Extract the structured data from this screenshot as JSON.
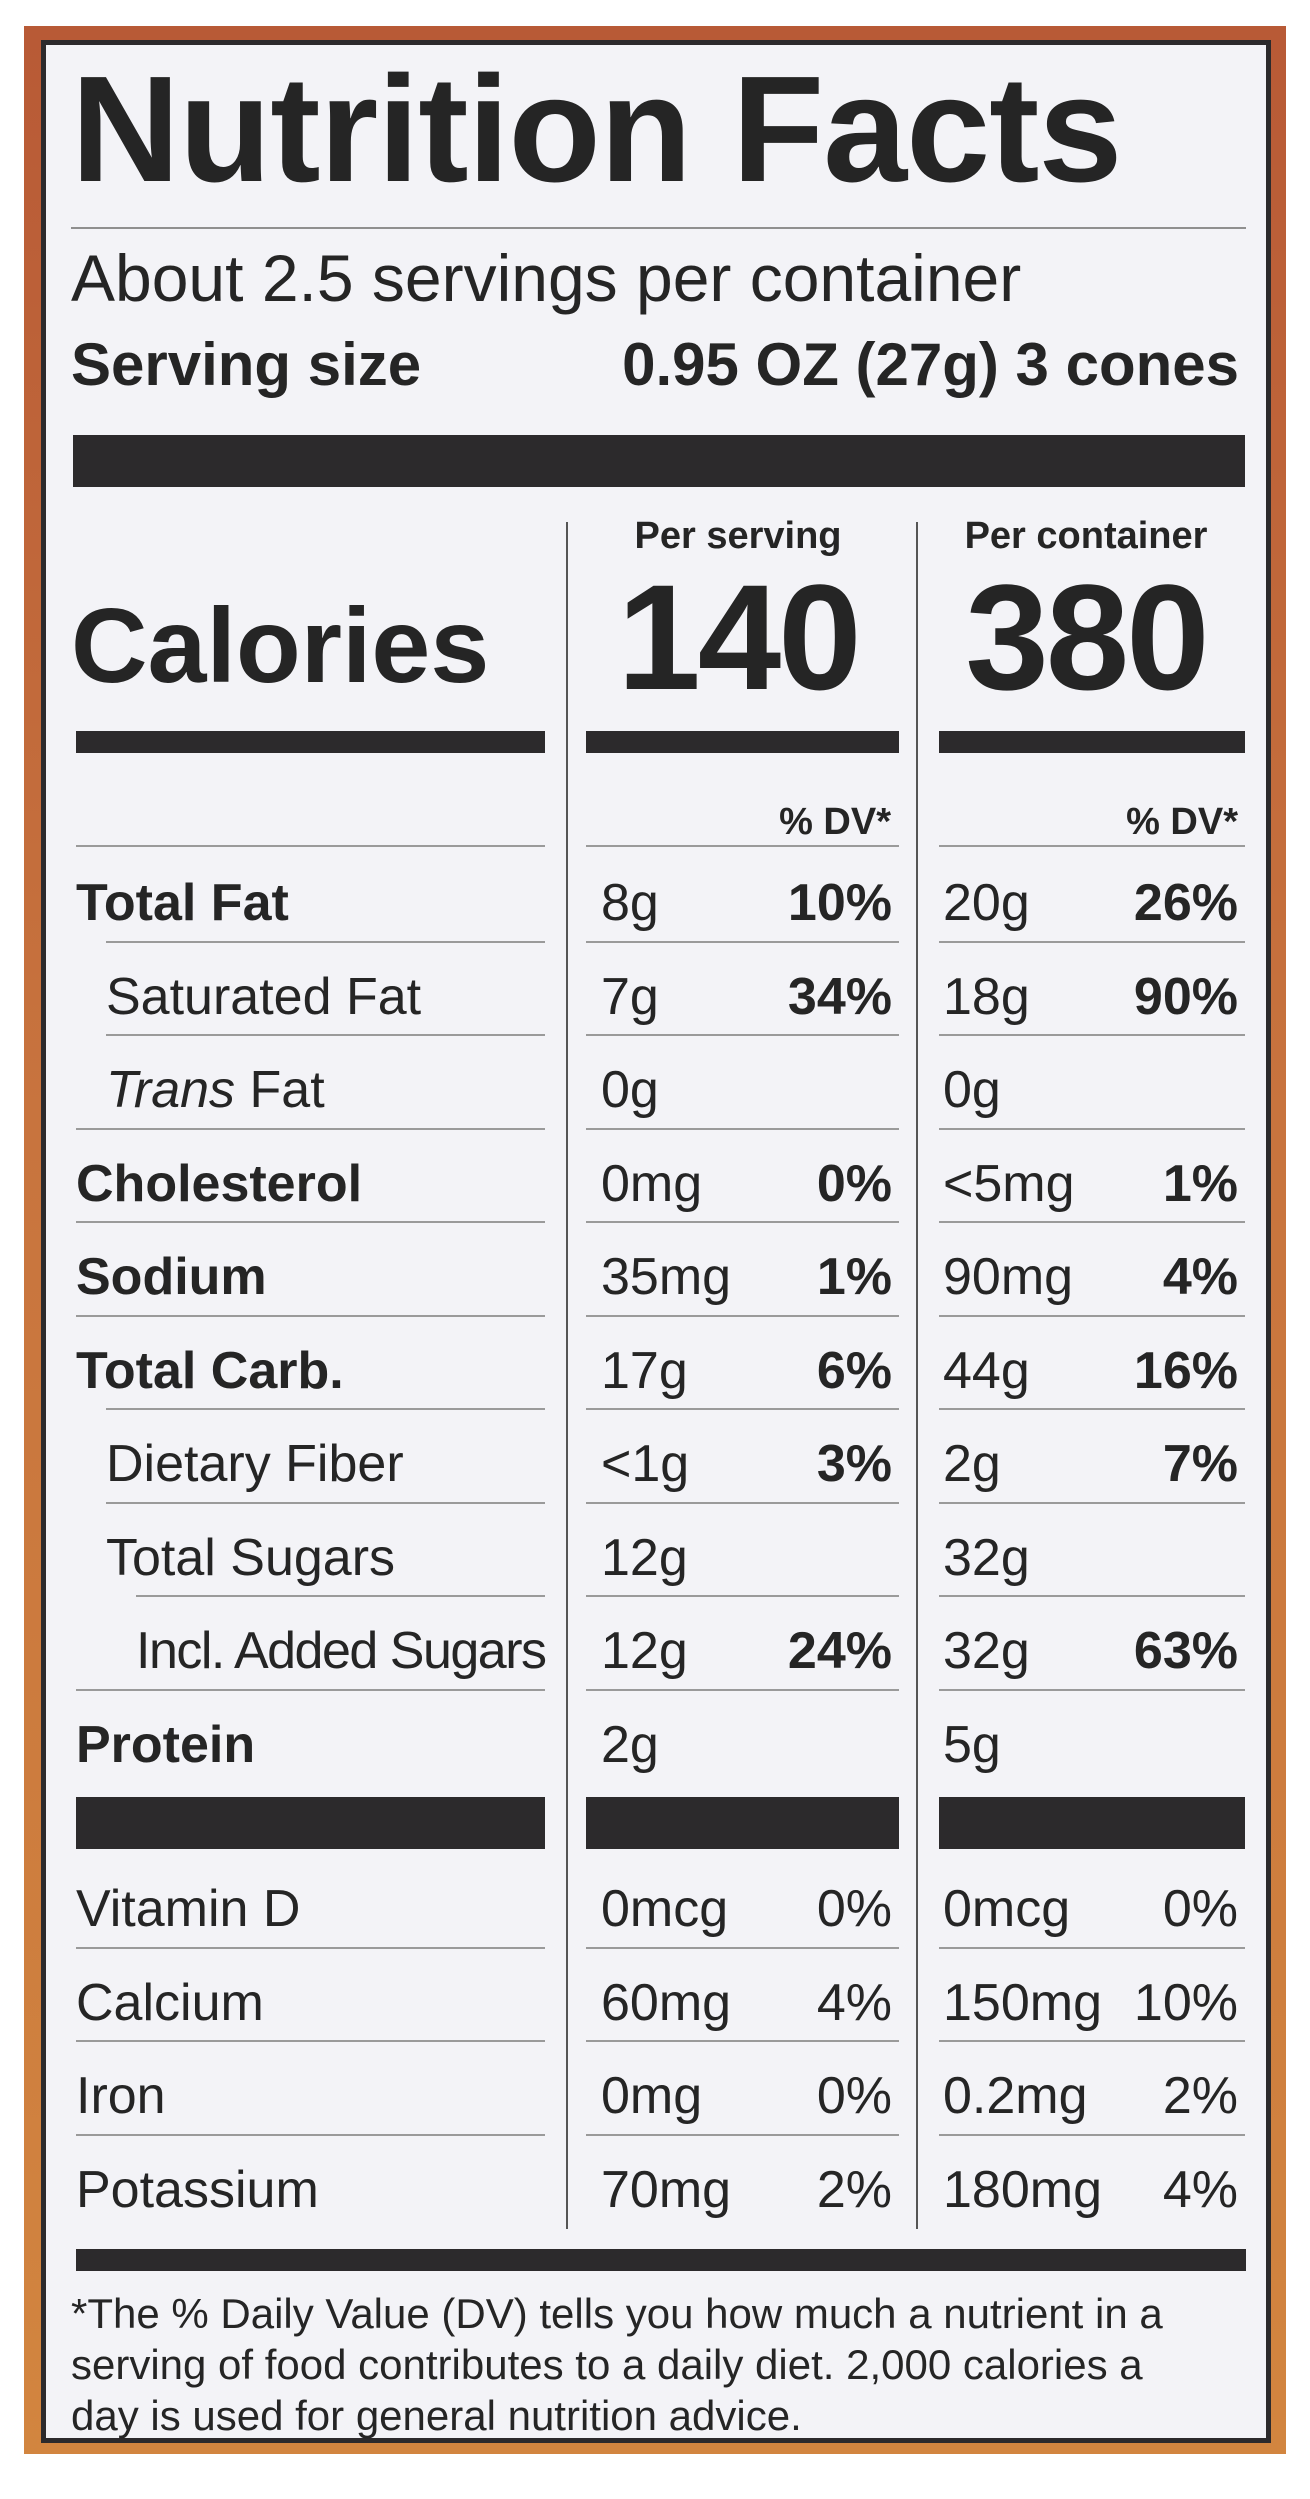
{
  "label": {
    "title": "Nutrition Facts",
    "servings_per_container": "About 2.5 servings per container",
    "serving_size_label": "Serving size",
    "serving_size_value": "0.95 OZ (27g) 3 cones",
    "calories_label": "Calories",
    "per_serving_label": "Per serving",
    "per_container_label": "Per container",
    "calories_per_serving": "140",
    "calories_per_container": "380",
    "dv_header": "% DV*",
    "nutrients": [
      {
        "name": "Total Fat",
        "serving_amount": "8g",
        "serving_dv": "10%",
        "container_amount": "20g",
        "container_dv": "26%"
      },
      {
        "name": "Saturated Fat",
        "serving_amount": "7g",
        "serving_dv": "34%",
        "container_amount": "18g",
        "container_dv": "90%"
      },
      {
        "name_italic": "Trans",
        "name_rest": " Fat",
        "serving_amount": "0g",
        "container_amount": "0g"
      },
      {
        "name": "Cholesterol",
        "serving_amount": "0mg",
        "serving_dv": "0%",
        "container_amount": "<5mg",
        "container_dv": "1%"
      },
      {
        "name": "Sodium",
        "serving_amount": "35mg",
        "serving_dv": "1%",
        "container_amount": "90mg",
        "container_dv": "4%"
      },
      {
        "name": "Total Carb.",
        "serving_amount": "17g",
        "serving_dv": "6%",
        "container_amount": "44g",
        "container_dv": "16%"
      },
      {
        "name": "Dietary Fiber",
        "serving_amount": "<1g",
        "serving_dv": "3%",
        "container_amount": "2g",
        "container_dv": "7%"
      },
      {
        "name": "Total Sugars",
        "serving_amount": "12g",
        "container_amount": "32g"
      },
      {
        "name": "Incl. Added Sugars",
        "serving_amount": "12g",
        "serving_dv": "24%",
        "container_amount": "32g",
        "container_dv": "63%"
      },
      {
        "name": "Protein",
        "serving_amount": "2g",
        "container_amount": "5g"
      }
    ],
    "vitamins": [
      {
        "name": "Vitamin D",
        "serving_amount": "0mcg",
        "serving_dv": "0%",
        "container_amount": "0mcg",
        "container_dv": "0%"
      },
      {
        "name": "Calcium",
        "serving_amount": "60mg",
        "serving_dv": "4%",
        "container_amount": "150mg",
        "container_dv": "10%"
      },
      {
        "name": "Iron",
        "serving_amount": "0mg",
        "serving_dv": "0%",
        "container_amount": "0.2mg",
        "container_dv": "2%"
      },
      {
        "name": "Potassium",
        "serving_amount": "70mg",
        "serving_dv": "2%",
        "container_amount": "180mg",
        "container_dv": "4%"
      }
    ],
    "footnote": "*The % Daily Value (DV) tells you how much a nutrient in a serving of food contributes to a daily diet. 2,000 calories a day is used for general nutrition advice."
  },
  "colors": {
    "panel_background": "#f3f3f7",
    "ink": "#252525",
    "package_border": "#c8743e"
  }
}
